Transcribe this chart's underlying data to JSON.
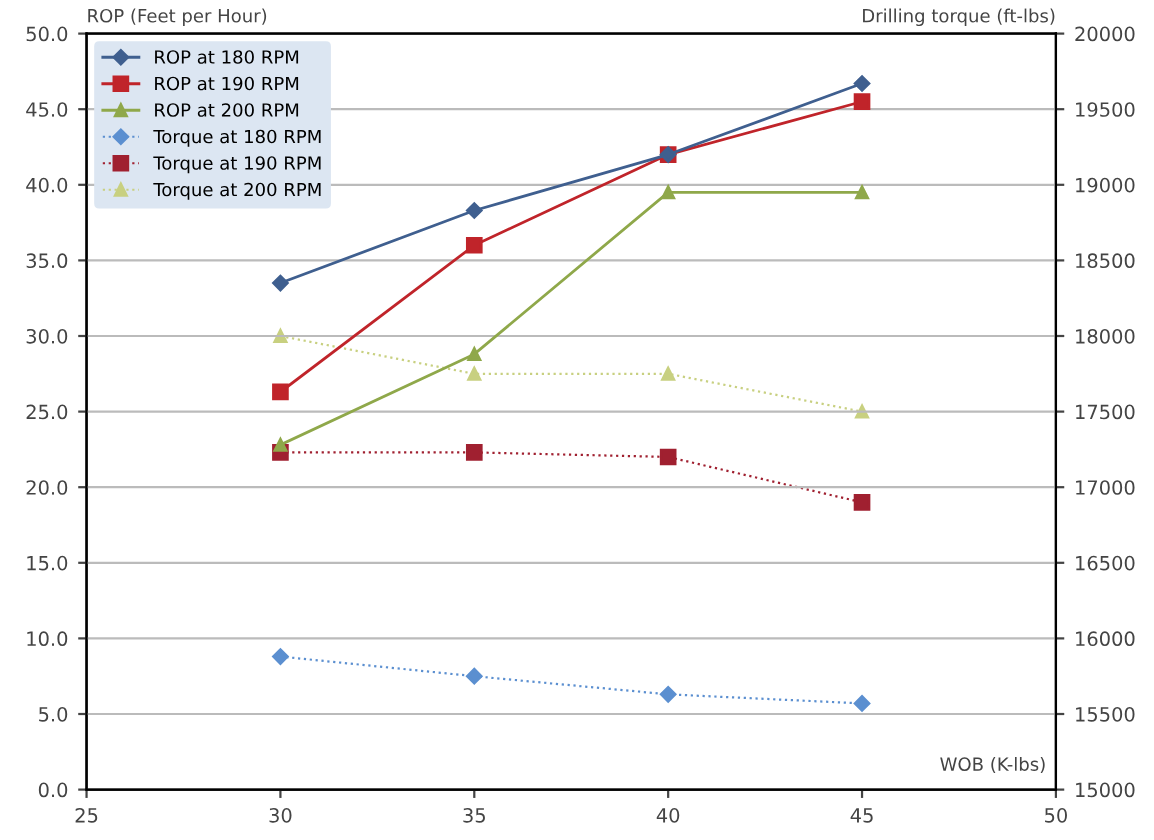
{
  "chart_data": {
    "type": "line",
    "ylabel": "ROP (Feet per Hour)",
    "y2label": "Drilling torque (ft-lbs)",
    "xlabel": "WOB (K-lbs)",
    "x": [
      30,
      35,
      40,
      45
    ],
    "series": [
      {
        "name": "ROP at 180 RPM",
        "color": "#3f5f8f",
        "values": [
          33.5,
          38.3,
          42.0,
          46.7
        ],
        "marker": "diamond",
        "line_style": "solid"
      },
      {
        "name": "ROP at 190 RPM",
        "color": "#c0242a",
        "values": [
          26.3,
          36.0,
          42.0,
          45.5
        ],
        "marker": "square",
        "line_style": "solid"
      },
      {
        "name": "ROP at 200 RPM",
        "color": "#8fa84a",
        "values": [
          22.8,
          28.8,
          39.5,
          39.5
        ],
        "marker": "triangle",
        "line_style": "solid"
      },
      {
        "name": "Torque at 180 RPM",
        "color": "#5b8fd0",
        "values": [
          15880,
          15750,
          15630,
          15570
        ],
        "axis": "y2",
        "marker": "diamond",
        "line_style": "dotted"
      },
      {
        "name": "Torque at 190 RPM",
        "color": "#a02030",
        "values": [
          17230,
          17230,
          17200,
          16900
        ],
        "axis": "y2",
        "marker": "square",
        "line_style": "dotted"
      },
      {
        "name": "Torque at 200 RPM",
        "color": "#c8d080",
        "values": [
          18000,
          17750,
          17750,
          17500
        ],
        "axis": "y2",
        "marker": "triangle",
        "line_style": "dotted"
      }
    ],
    "xlim": [
      25,
      50
    ],
    "xticks": [
      25,
      30,
      35,
      40,
      45,
      50
    ],
    "ylim": [
      0,
      50
    ],
    "yticks": [
      {
        "value": 0,
        "label": "0.0"
      },
      {
        "value": 5,
        "label": "5.0"
      },
      {
        "value": 10,
        "label": "10.0"
      },
      {
        "value": 15,
        "label": "15.0"
      },
      {
        "value": 20,
        "label": "20.0"
      },
      {
        "value": 25,
        "label": "25.0"
      },
      {
        "value": 30,
        "label": "30.0"
      },
      {
        "value": 35,
        "label": "35.0"
      },
      {
        "value": 40,
        "label": "40.0"
      },
      {
        "value": 45,
        "label": "45.0"
      },
      {
        "value": 50,
        "label": "50.0"
      }
    ],
    "y2lim": [
      15000,
      20000
    ],
    "y2ticks": [
      15000,
      15500,
      16000,
      16500,
      17000,
      17500,
      18000,
      18500,
      19000,
      19500,
      20000
    ],
    "grid": "y",
    "legend": "top left"
  }
}
